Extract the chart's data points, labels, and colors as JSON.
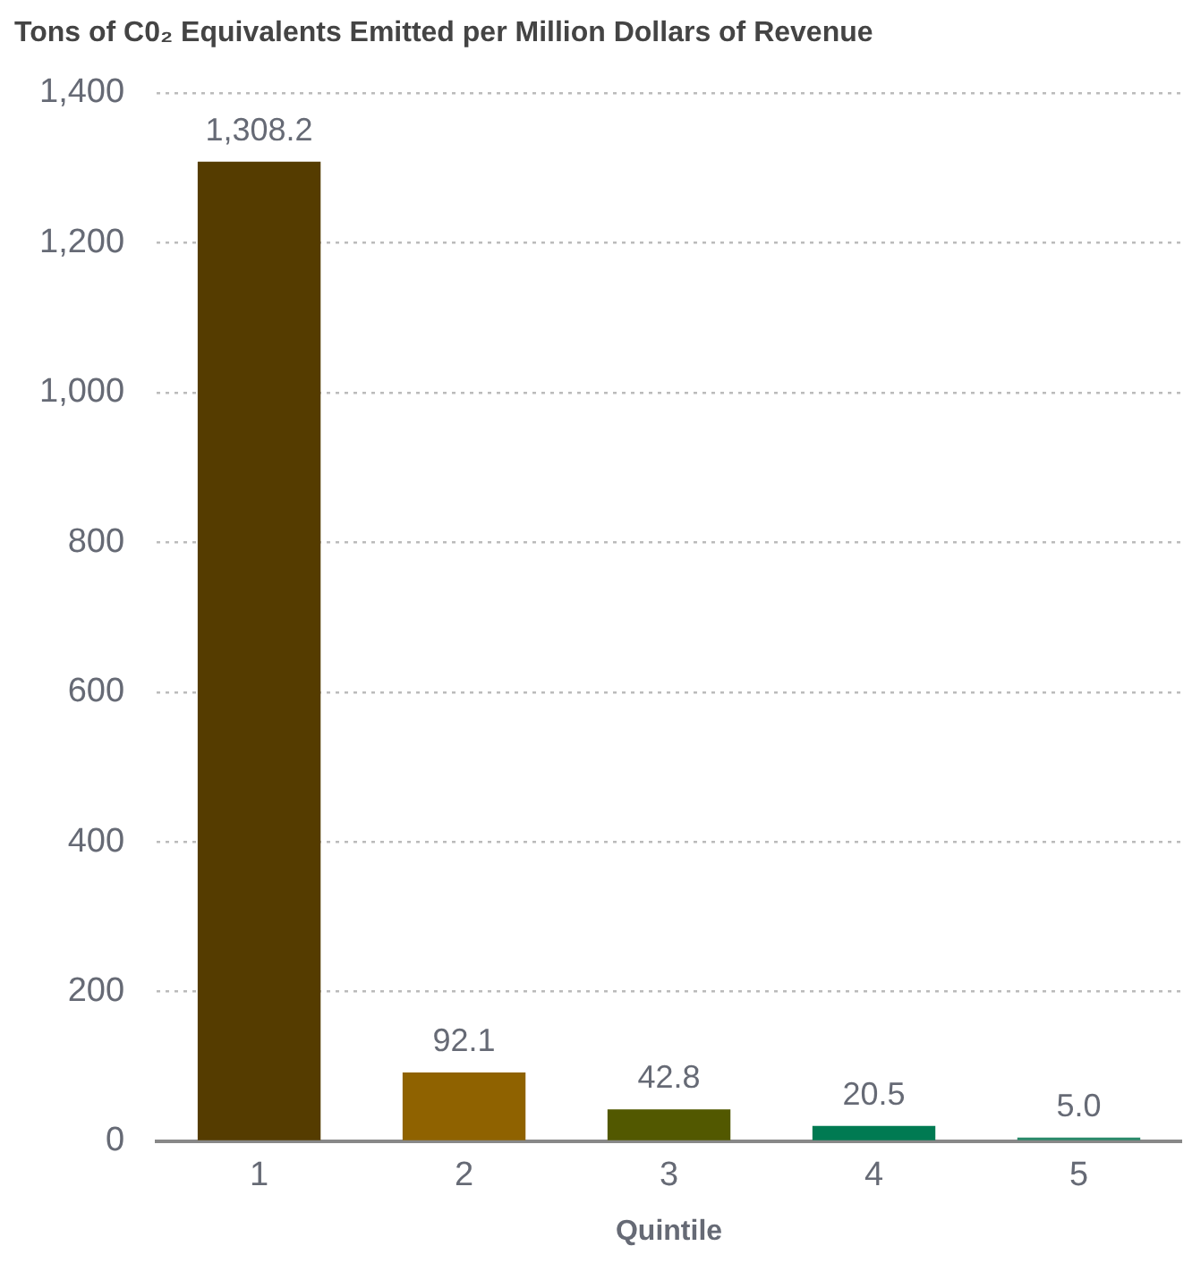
{
  "chart_data": {
    "type": "bar",
    "title": "Tons of C0₂ Equivalents Emitted per Million Dollars of Revenue",
    "xlabel": "Quintile",
    "categories": [
      "1",
      "2",
      "3",
      "4",
      "5"
    ],
    "values": [
      1308.2,
      92.1,
      42.8,
      20.5,
      5.0
    ],
    "value_labels": [
      "1,308.2",
      "92.1",
      "42.8",
      "20.5",
      "5.0"
    ],
    "colors": [
      "#553c00",
      "#8f6200",
      "#525800",
      "#007a52",
      "#2a8a6a"
    ],
    "ylim": [
      0,
      1400
    ],
    "yticks": [
      0,
      200,
      400,
      600,
      800,
      {
        "value": 1000,
        "label": "1,000"
      },
      {
        "value": 1200,
        "label": "1,200"
      },
      {
        "value": 1400,
        "label": "1,400"
      }
    ],
    "grid": "y",
    "legend": false
  }
}
